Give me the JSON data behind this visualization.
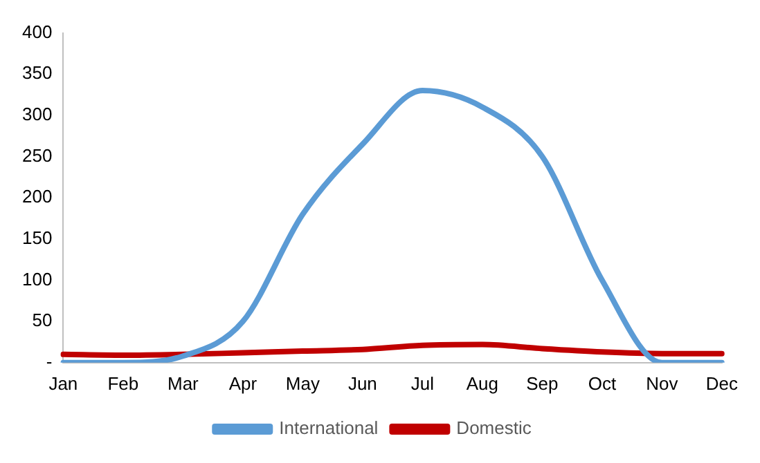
{
  "chart_data": {
    "type": "line",
    "categories": [
      "Jan",
      "Feb",
      "Mar",
      "Apr",
      "May",
      "Jun",
      "Jul",
      "Aug",
      "Sep",
      "Oct",
      "Nov",
      "Dec"
    ],
    "series": [
      {
        "name": "International",
        "color": "#5b9bd5",
        "values": [
          0,
          0,
          8,
          50,
          180,
          265,
          330,
          310,
          250,
          100,
          0,
          0
        ]
      },
      {
        "name": "Domestic",
        "color": "#c00000",
        "values": [
          10,
          9,
          10,
          12,
          14,
          16,
          21,
          22,
          17,
          13,
          11,
          11
        ]
      }
    ],
    "ylim": [
      0,
      400
    ],
    "yticks": [
      {
        "value": 0,
        "label": "-"
      },
      50,
      100,
      150,
      200,
      250,
      300,
      350,
      400
    ],
    "grid": false,
    "legend": "bottom",
    "marker": "none",
    "line_style": "solid"
  }
}
